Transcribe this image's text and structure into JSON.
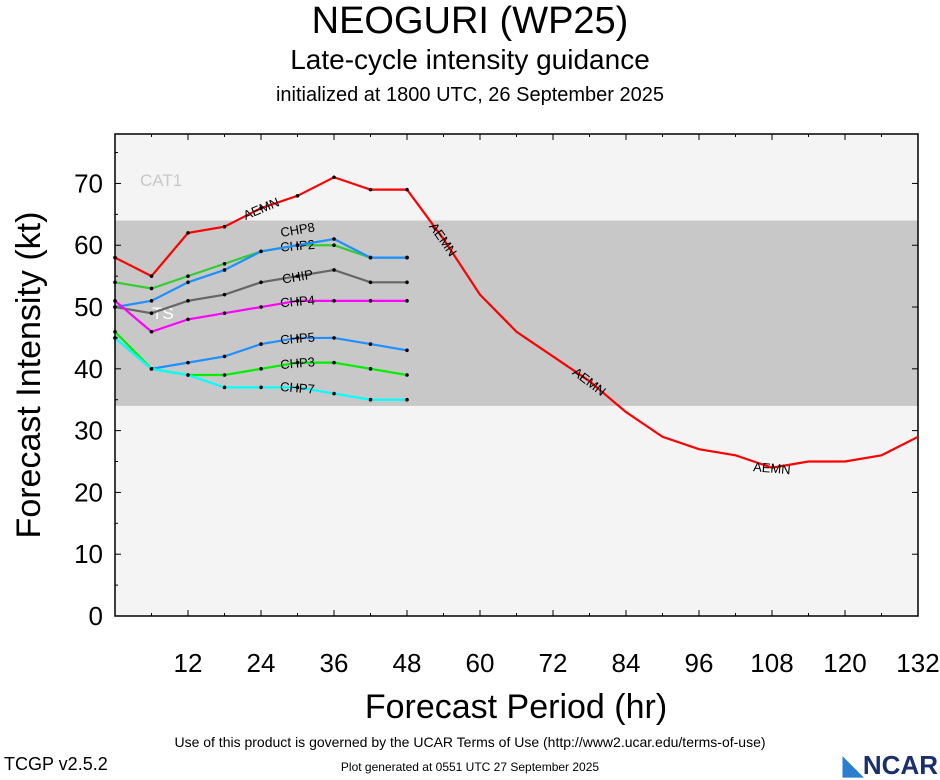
{
  "title": "NEOGURI (WP25)",
  "subtitle": "Late-cycle intensity guidance",
  "init": "initialized at 1800 UTC, 26 September 2025",
  "footer": {
    "terms": "Use of this product is governed by the UCAR Terms of Use (http://www2.ucar.edu/terms-of-use)",
    "version": "TCGP v2.5.2",
    "generated": "Plot generated at 0551 UTC   27 September 2025",
    "logo": "NCAR"
  },
  "chart_data": {
    "type": "line",
    "xlabel": "Forecast Period (hr)",
    "ylabel": "Forecast Intensity (kt)",
    "xlim": [
      0,
      132
    ],
    "ylim": [
      0,
      78
    ],
    "xticks": [
      12,
      24,
      36,
      48,
      60,
      72,
      84,
      96,
      108,
      120,
      132
    ],
    "yticks": [
      0,
      10,
      20,
      30,
      40,
      50,
      60,
      70
    ],
    "bands": [
      {
        "label": "TS",
        "from": 34,
        "to": 64,
        "color": "#c8c8c8"
      },
      {
        "label": "CAT1",
        "from": 64,
        "to": 78,
        "color": "#f4f4f4"
      }
    ],
    "series": [
      {
        "name": "AEMN",
        "color": "#ff0000",
        "label_x": [
          24,
          54,
          78,
          108
        ],
        "x": [
          0,
          6,
          12,
          18,
          24,
          30,
          36,
          42,
          48,
          54,
          60,
          66,
          72,
          78,
          84,
          90,
          96,
          102,
          108,
          114,
          120,
          126,
          132
        ],
        "values": [
          58,
          55,
          62,
          63,
          66,
          68,
          71,
          69,
          69,
          61,
          52,
          46,
          42,
          38,
          33,
          29,
          27,
          26,
          24,
          25,
          25,
          26,
          29
        ]
      },
      {
        "name": "CHP2",
        "color": "#33cc33",
        "label_x": [
          30
        ],
        "x": [
          0,
          6,
          12,
          18,
          24,
          30,
          36,
          42,
          48
        ],
        "values": [
          54,
          53,
          55,
          57,
          59,
          60,
          60,
          58,
          58
        ]
      },
      {
        "name": "CHP8",
        "color": "#1e90ff",
        "label_x": [
          30
        ],
        "x": [
          0,
          6,
          12,
          18,
          24,
          30,
          36,
          42,
          48
        ],
        "values": [
          50,
          51,
          54,
          56,
          59,
          60,
          61,
          58,
          58
        ]
      },
      {
        "name": "CHIP",
        "color": "#666666",
        "label_x": [
          30
        ],
        "x": [
          0,
          6,
          12,
          18,
          24,
          30,
          36,
          42,
          48
        ],
        "values": [
          50,
          49,
          51,
          52,
          54,
          55,
          56,
          54,
          54
        ]
      },
      {
        "name": "CHP4",
        "color": "#ff00ff",
        "label_x": [
          30
        ],
        "x": [
          0,
          6,
          12,
          18,
          24,
          30,
          36,
          42,
          48
        ],
        "values": [
          51,
          46,
          48,
          49,
          50,
          51,
          51,
          51,
          51
        ]
      },
      {
        "name": "CHP5",
        "color": "#1e90ff",
        "label_x": [
          30
        ],
        "x": [
          0,
          6,
          12,
          18,
          24,
          30,
          36,
          42,
          48
        ],
        "values": [
          45,
          40,
          41,
          42,
          44,
          45,
          45,
          44,
          43
        ]
      },
      {
        "name": "CHP3",
        "color": "#00ee00",
        "label_x": [
          30
        ],
        "x": [
          0,
          6,
          12,
          18,
          24,
          30,
          36,
          42,
          48
        ],
        "values": [
          46,
          40,
          39,
          39,
          40,
          41,
          41,
          40,
          39
        ]
      },
      {
        "name": "CHP7",
        "color": "#00ffff",
        "label_x": [
          30
        ],
        "x": [
          0,
          6,
          12,
          18,
          24,
          30,
          36,
          42,
          48
        ],
        "values": [
          45,
          40,
          39,
          37,
          37,
          37,
          36,
          35,
          35
        ]
      }
    ]
  }
}
